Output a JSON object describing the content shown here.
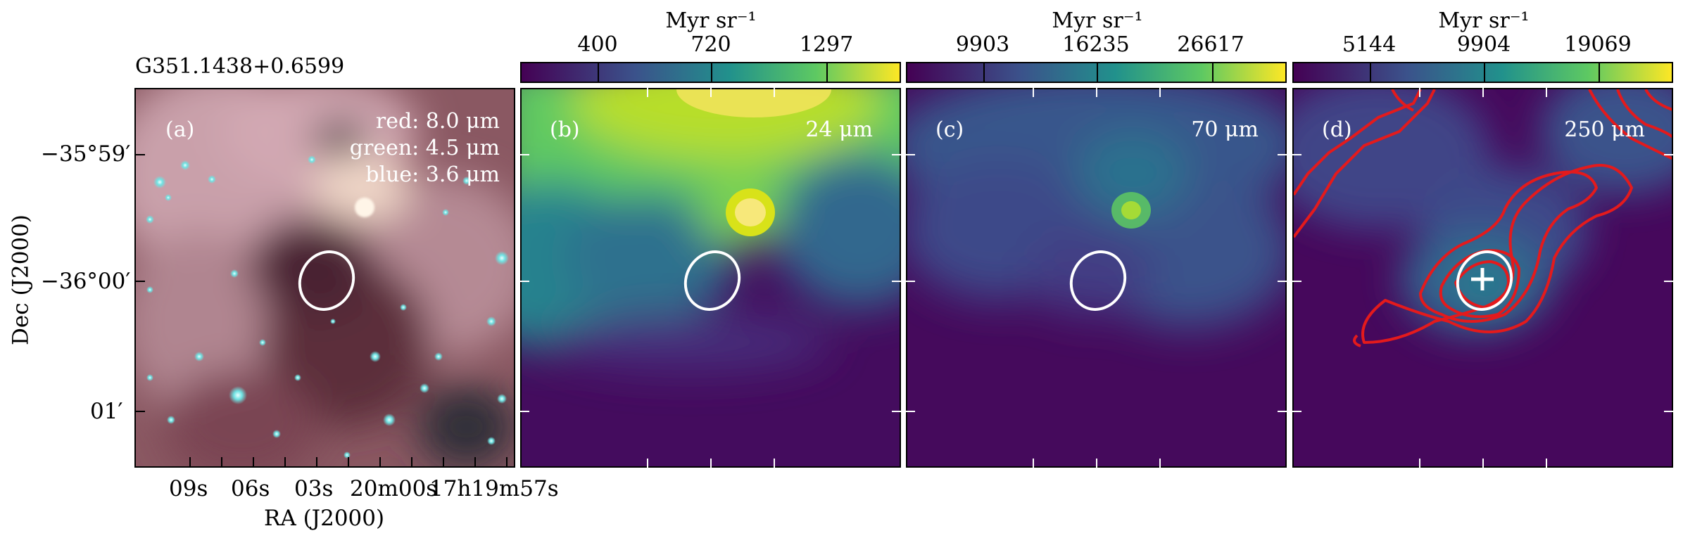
{
  "figure": {
    "source_name": "G351.1438+0.6599",
    "xlabel": "RA (J2000)",
    "ylabel": "Dec (J2000)",
    "ra_ticks": [
      "09s",
      "06s",
      "03s",
      "20m00s",
      "17h19m57s"
    ],
    "dec_ticks": [
      "−35°59′",
      "−36°00′",
      "01′"
    ]
  },
  "panels": [
    {
      "label": "(a)",
      "legend": [
        "red: 8.0 μm",
        "green: 4.5 μm",
        "blue: 3.6 μm"
      ],
      "kind": "rgb"
    },
    {
      "label": "(b)",
      "band": "24 μm",
      "cbar_title": "Myr sr⁻¹",
      "cbar_ticks": [
        "400",
        "720",
        "1297"
      ],
      "kind": "viridis"
    },
    {
      "label": "(c)",
      "band": "70 μm",
      "cbar_title": "Myr sr⁻¹",
      "cbar_ticks": [
        "9903",
        "16235",
        "26617"
      ],
      "kind": "viridis"
    },
    {
      "label": "(d)",
      "band": "250 μm",
      "cbar_title": "Myr sr⁻¹",
      "cbar_ticks": [
        "5144",
        "9904",
        "19069"
      ],
      "kind": "viridis",
      "contours": true,
      "marker": "+"
    }
  ],
  "colors": {
    "ellipse": "#ffffff",
    "contour": "#e41a1c",
    "viridis": [
      "#440154",
      "#3b528b",
      "#21918c",
      "#5ec962",
      "#fde725"
    ]
  }
}
